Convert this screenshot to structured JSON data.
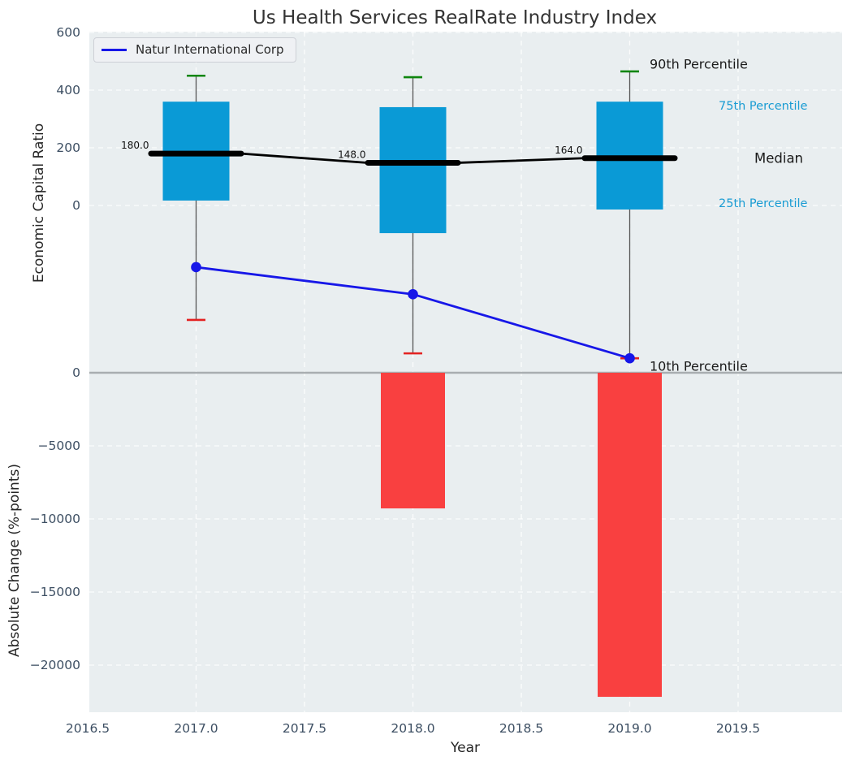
{
  "legend": {
    "label": "Natur International Corp"
  },
  "colors": {
    "plot_bg": "#e9eef0",
    "grid": "#ffffff",
    "tick": "#3d4f63",
    "box_fill": "#0a9ad6",
    "median": "#000000",
    "whisker": "#555555",
    "cap_top": "#0e860e",
    "cap_bottom": "#e32222",
    "company_line": "#1717e8",
    "change_bar": "#f94040",
    "zero_line": "#a9aeb1",
    "annotation_black": "#1a1a1a",
    "annotation_cyan": "#1a9cd3",
    "median_label": "#111111"
  },
  "chart_data": {
    "type": "boxplot-line-bar-combo",
    "title": "Us Health Services RealRate Industry Index",
    "xlabel": "Year",
    "ylabel_top": "Economic Capital Ratio",
    "ylabel_bottom": "Absolute Change (%-points)",
    "grid": "on",
    "legend_position": "upper-left",
    "x_axis": {
      "min": 2016.5,
      "max": 2019.97,
      "ticks": [
        {
          "v": 2016.5,
          "label": "2016.5"
        },
        {
          "v": 2017.0,
          "label": "2017.0"
        },
        {
          "v": 2017.5,
          "label": "2017.5"
        },
        {
          "v": 2018.0,
          "label": "2018.0"
        },
        {
          "v": 2018.5,
          "label": "2018.5"
        },
        {
          "v": 2019.0,
          "label": "2019.0"
        },
        {
          "v": 2019.5,
          "label": "2019.5"
        }
      ]
    },
    "ratio_axis": {
      "ticks": [
        {
          "v": 600,
          "label": "600"
        },
        {
          "v": 400,
          "label": "400"
        },
        {
          "v": 200,
          "label": "200"
        },
        {
          "v": 0,
          "label": "0"
        }
      ]
    },
    "change_axis": {
      "ticks": [
        {
          "v": 0,
          "label": "0"
        },
        {
          "v": -5000,
          "label": "−5000"
        },
        {
          "v": -10000,
          "label": "−10000"
        },
        {
          "v": -15000,
          "label": "−15000"
        },
        {
          "v": -20000,
          "label": "−20000"
        }
      ]
    },
    "years": [
      2017,
      2018,
      2019
    ],
    "percentile_boxes": [
      {
        "year": 2017,
        "p10": -397,
        "p25": 17,
        "median": 180,
        "p75": 360,
        "p90": 450,
        "median_label": "180.0"
      },
      {
        "year": 2018,
        "p10": -513,
        "p25": -96,
        "median": 148,
        "p75": 341,
        "p90": 445,
        "median_label": "148.0"
      },
      {
        "year": 2019,
        "p10": -530,
        "p25": -14,
        "median": 164,
        "p75": 360,
        "p90": 465,
        "median_label": "164.0"
      }
    ],
    "company_line": {
      "name": "Natur International Corp",
      "points": [
        {
          "year": 2017,
          "v": -214
        },
        {
          "year": 2018,
          "v": -308
        },
        {
          "year": 2019,
          "v": -530
        }
      ]
    },
    "change_bars": [
      {
        "year": 2017,
        "v": 0
      },
      {
        "year": 2018,
        "v": -9280
      },
      {
        "year": 2019,
        "v": -22170
      }
    ],
    "annotations": [
      {
        "id": "p90",
        "text": "90th Percentile"
      },
      {
        "id": "p75",
        "text": "75th Percentile"
      },
      {
        "id": "median",
        "text": "Median"
      },
      {
        "id": "p25",
        "text": "25th Percentile"
      },
      {
        "id": "p10",
        "text": "10th Percentile"
      }
    ]
  }
}
